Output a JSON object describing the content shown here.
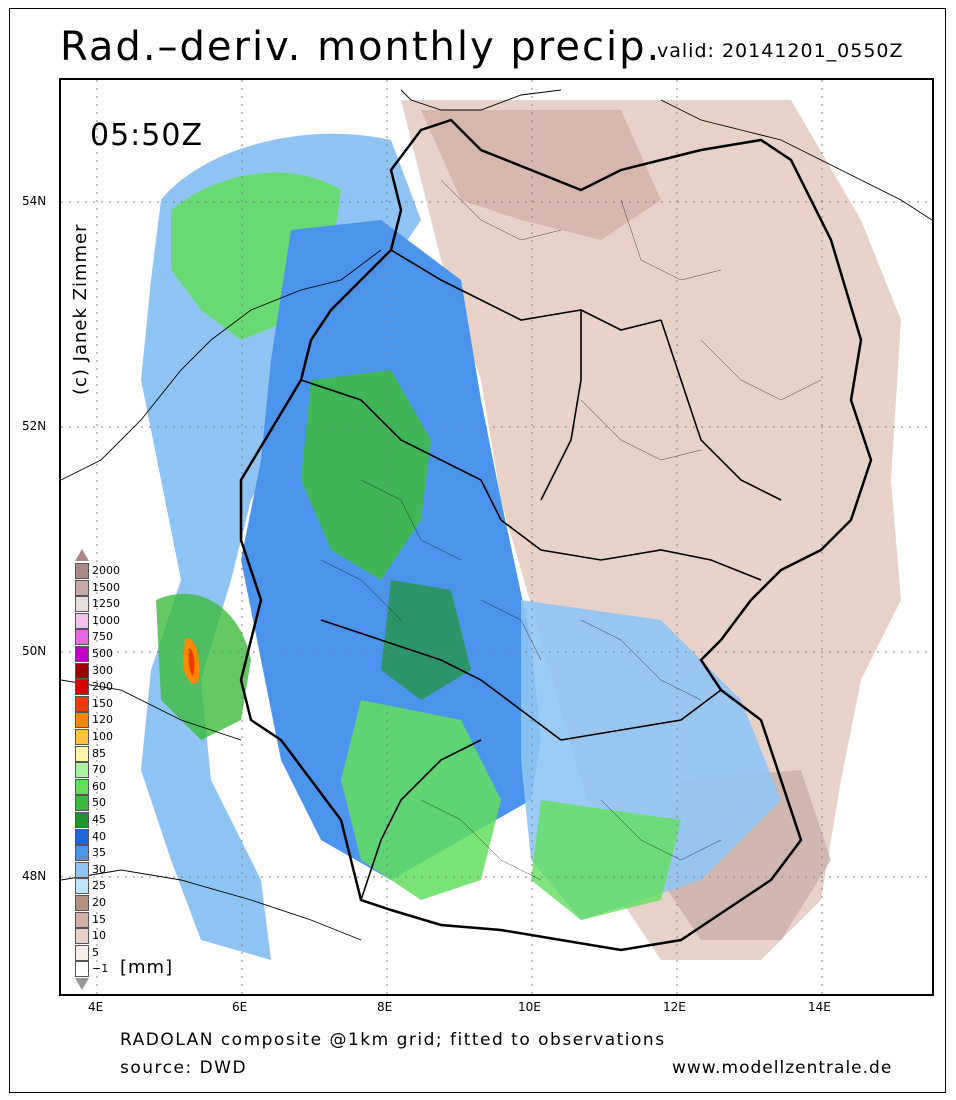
{
  "title": "Rad.–deriv. monthly precip.",
  "valid": "valid: 20141201_0550Z",
  "time_label": "05:50Z",
  "copyright": "(c) Janek Zimmer",
  "lat_labels": [
    "54N",
    "52N",
    "50N",
    "48N"
  ],
  "lon_labels": [
    "4E",
    "6E",
    "8E",
    "10E",
    "12E",
    "14E"
  ],
  "legend": {
    "unit": "[mm]",
    "entries": [
      {
        "value": "2000",
        "color": "#a98a86"
      },
      {
        "value": "1500",
        "color": "#c4aaa4"
      },
      {
        "value": "1250",
        "color": "#e8dede"
      },
      {
        "value": "1000",
        "color": "#f4c0ee"
      },
      {
        "value": "750",
        "color": "#e666e6"
      },
      {
        "value": "500",
        "color": "#c200c2"
      },
      {
        "value": "300",
        "color": "#a00000"
      },
      {
        "value": "200",
        "color": "#d90000"
      },
      {
        "value": "150",
        "color": "#ee3a00"
      },
      {
        "value": "120",
        "color": "#ff8800"
      },
      {
        "value": "100",
        "color": "#ffc23c"
      },
      {
        "value": "85",
        "color": "#fff5a6"
      },
      {
        "value": "70",
        "color": "#a8f0a2"
      },
      {
        "value": "60",
        "color": "#62de5e"
      },
      {
        "value": "50",
        "color": "#3cbc3c"
      },
      {
        "value": "45",
        "color": "#1e9630"
      },
      {
        "value": "40",
        "color": "#1e64dc"
      },
      {
        "value": "35",
        "color": "#4a94ee"
      },
      {
        "value": "30",
        "color": "#90c4f4"
      },
      {
        "value": "25",
        "color": "#bce6fa"
      },
      {
        "value": "20",
        "color": "#b89080"
      },
      {
        "value": "15",
        "color": "#d2b0a4"
      },
      {
        "value": "10",
        "color": "#e8d2c8"
      },
      {
        "value": "5",
        "color": "#f6ece8"
      },
      {
        "value": "−1",
        "color": "#ffffff"
      }
    ]
  },
  "footer": {
    "line1": "RADOLAN composite @1km grid; fitted to observations",
    "line2": "source: DWD",
    "website": "www.modellzentrale.de"
  }
}
